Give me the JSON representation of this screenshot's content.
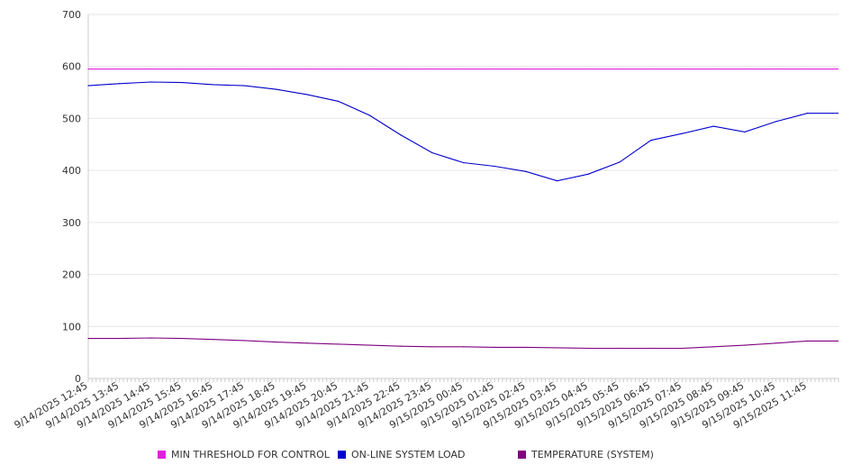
{
  "chart_data": {
    "type": "line",
    "title": "",
    "xlabel": "",
    "ylabel": "",
    "ylim": [
      0,
      700
    ],
    "yticks": [
      0,
      100,
      200,
      300,
      400,
      500,
      600,
      700
    ],
    "grid": true,
    "legend_position": "bottom",
    "x": [
      "9/14/2025 12:45",
      "9/14/2025 13:45",
      "9/14/2025 14:45",
      "9/14/2025 15:45",
      "9/14/2025 16:45",
      "9/14/2025 17:45",
      "9/14/2025 18:45",
      "9/14/2025 19:45",
      "9/14/2025 20:45",
      "9/14/2025 21:45",
      "9/14/2025 22:45",
      "9/14/2025 23:45",
      "9/15/2025 00:45",
      "9/15/2025 01:45",
      "9/15/2025 02:45",
      "9/15/2025 03:45",
      "9/15/2025 04:45",
      "9/15/2025 05:45",
      "9/15/2025 06:45",
      "9/15/2025 07:45",
      "9/15/2025 08:45",
      "9/15/2025 09:45",
      "9/15/2025 10:45",
      "9/15/2025 11:45"
    ],
    "series": [
      {
        "name": "MIN THRESHOLD FOR CONTROL",
        "color": "#e020e0",
        "values": [
          595,
          595,
          595,
          595,
          595,
          595,
          595,
          595,
          595,
          595,
          595,
          595,
          595,
          595,
          595,
          595,
          595,
          595,
          595,
          595,
          595,
          595,
          595,
          595
        ]
      },
      {
        "name": "ON-LINE SYSTEM LOAD",
        "color": "#0000cc",
        "values": [
          563,
          567,
          570,
          569,
          565,
          563,
          556,
          546,
          533,
          506,
          468,
          434,
          415,
          408,
          398,
          380,
          393,
          416,
          458,
          471,
          485,
          474,
          494,
          510
        ]
      },
      {
        "name": "TEMPERATURE (SYSTEM)",
        "color": "#800080",
        "values": [
          77,
          77,
          78,
          77,
          75,
          73,
          70,
          68,
          66,
          64,
          62,
          61,
          61,
          60,
          60,
          59,
          58,
          58,
          58,
          58,
          61,
          64,
          68,
          72
        ]
      }
    ]
  }
}
